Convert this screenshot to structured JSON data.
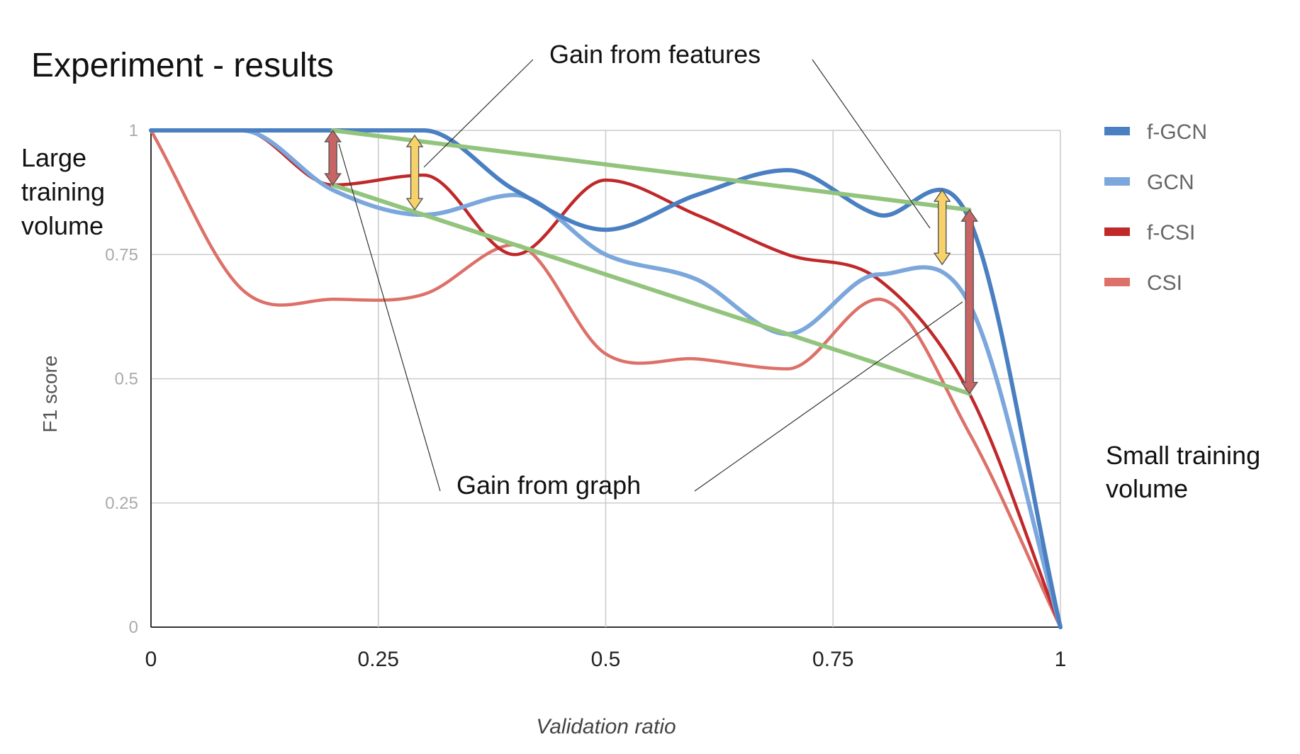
{
  "chart_data": {
    "type": "line",
    "title": "Experiment - results",
    "xlabel": "Validation ratio",
    "ylabel": "F1 score",
    "xlim": [
      0,
      1
    ],
    "ylim": [
      0,
      1
    ],
    "x_ticks": [
      0,
      0.25,
      0.5,
      0.75,
      1
    ],
    "x_tick_labels": [
      "0",
      "0.25",
      "0.5",
      "0.75",
      "1"
    ],
    "y_ticks": [
      0,
      0.25,
      0.5,
      0.75,
      1
    ],
    "y_tick_labels": [
      "0",
      "0.25",
      "0.5",
      "0.75",
      "1"
    ],
    "grid": true,
    "legend_position": "right",
    "series": [
      {
        "name": "f-GCN",
        "color": "#4a7fc1",
        "x": [
          0,
          0.1,
          0.2,
          0.3,
          0.4,
          0.5,
          0.6,
          0.7,
          0.8,
          0.9,
          1
        ],
        "values": [
          1,
          1,
          1,
          1,
          0.88,
          0.8,
          0.87,
          0.92,
          0.83,
          0.82,
          0
        ]
      },
      {
        "name": "GCN",
        "color": "#7ba7dc",
        "x": [
          0,
          0.1,
          0.2,
          0.3,
          0.4,
          0.5,
          0.6,
          0.7,
          0.8,
          0.9,
          1
        ],
        "values": [
          1,
          1,
          0.88,
          0.83,
          0.87,
          0.75,
          0.7,
          0.59,
          0.71,
          0.65,
          0
        ]
      },
      {
        "name": "f-CSI",
        "color": "#c0282a",
        "x": [
          0,
          0.1,
          0.2,
          0.3,
          0.4,
          0.5,
          0.6,
          0.7,
          0.8,
          0.9,
          1
        ],
        "values": [
          1,
          1,
          0.89,
          0.91,
          0.75,
          0.9,
          0.83,
          0.75,
          0.7,
          0.47,
          0
        ]
      },
      {
        "name": "CSI",
        "color": "#dd7068",
        "x": [
          0,
          0.1,
          0.2,
          0.3,
          0.4,
          0.5,
          0.6,
          0.7,
          0.8,
          0.9,
          1
        ],
        "values": [
          1,
          0.68,
          0.66,
          0.67,
          0.77,
          0.55,
          0.54,
          0.52,
          0.66,
          0.39,
          0
        ]
      }
    ],
    "trend_lines": [
      {
        "color": "#93c47d",
        "x": [
          0.2,
          0.9
        ],
        "values": [
          1,
          0.84
        ]
      },
      {
        "color": "#93c47d",
        "x": [
          0.2,
          0.9
        ],
        "values": [
          0.89,
          0.47
        ]
      }
    ],
    "gain_arrows": [
      {
        "type": "graph",
        "color": "#c86464",
        "x": 0.2,
        "from": 1,
        "to": 0.89
      },
      {
        "type": "features",
        "color": "#f7d26b",
        "x": 0.29,
        "from": 0.99,
        "to": 0.84
      },
      {
        "type": "features",
        "color": "#f7d26b",
        "x": 0.87,
        "from": 0.88,
        "to": 0.73
      },
      {
        "type": "graph",
        "color": "#c86464",
        "x": 0.9,
        "from": 0.84,
        "to": 0.47
      }
    ],
    "annotations": {
      "large_training": [
        "Large",
        "training",
        "volume"
      ],
      "small_training": [
        "Small training",
        "volume"
      ],
      "gain_features": "Gain from features",
      "gain_graph": "Gain from graph"
    }
  }
}
